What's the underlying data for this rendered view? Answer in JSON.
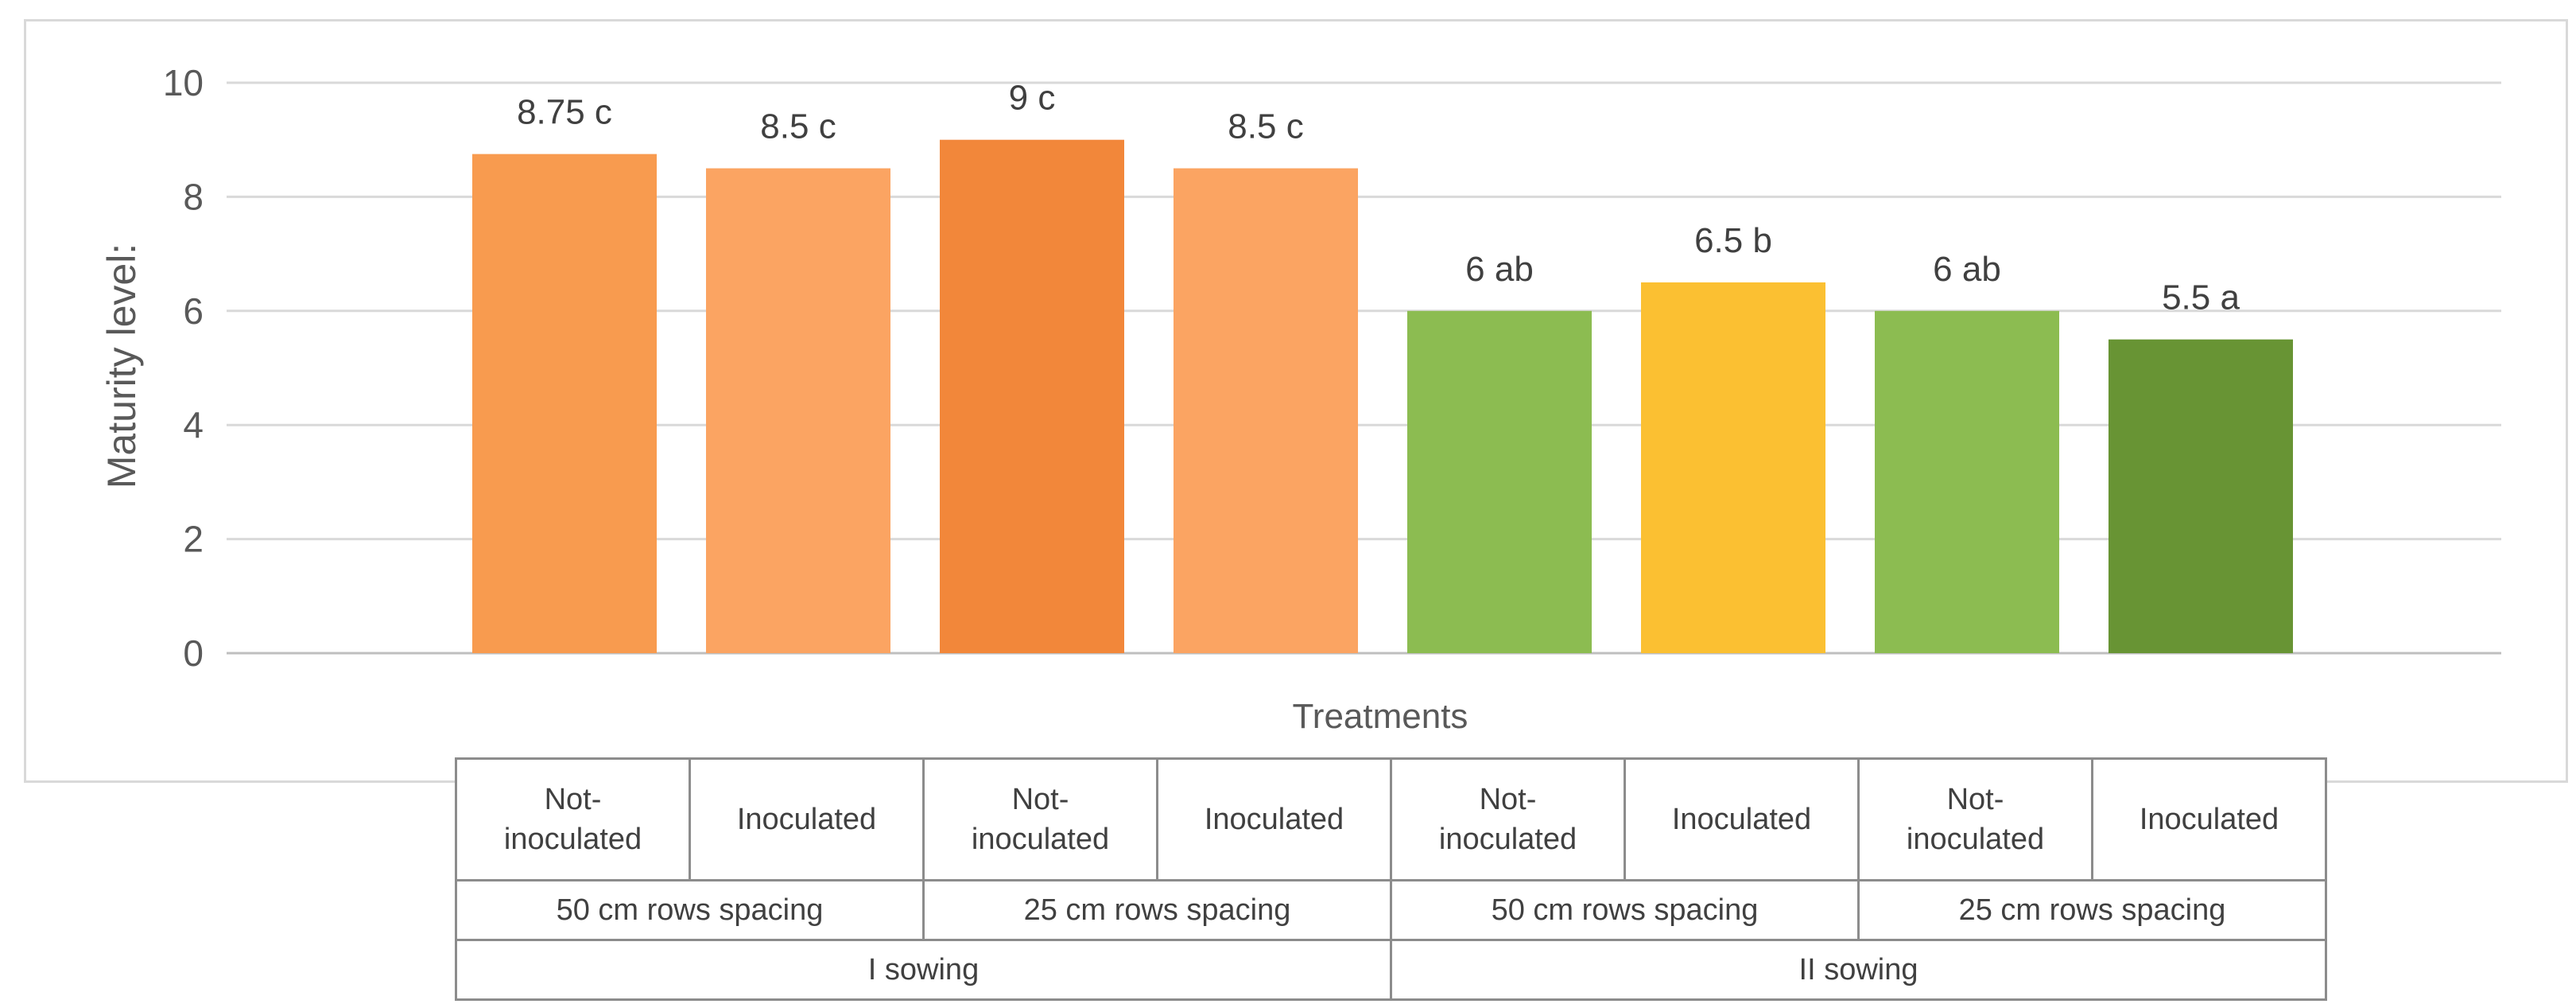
{
  "chart_data": {
    "type": "bar",
    "title": "",
    "xlabel": "Treatments",
    "ylabel": "Maturity level:",
    "ylim": [
      0,
      10
    ],
    "yticks": [
      0,
      2,
      4,
      6,
      8,
      10
    ],
    "grid": true,
    "categories": [
      "Not-inoculated | 50 cm rows spacing | I sowing",
      "Inoculated | 50 cm rows spacing | I sowing",
      "Not-inoculated | 25 cm rows spacing | I sowing",
      "Inoculated | 25 cm rows spacing | I sowing",
      "Not-inoculated | 50 cm rows spacing | II sowing",
      "Inoculated | 50 cm rows spacing | II sowing",
      "Not-inoculated | 25 cm rows spacing | II sowing",
      "Inoculated | 25 cm rows spacing | II sowing"
    ],
    "values": [
      8.75,
      8.5,
      9,
      8.5,
      6,
      6.5,
      6,
      5.5
    ],
    "data_labels": [
      "8.75 c",
      "8.5 c",
      "9 c",
      "8.5 c",
      "6 ab",
      "6.5 b",
      "6 ab",
      "5.5 a"
    ],
    "bar_colors": [
      "#F89B4F",
      "#FBA462",
      "#F2873A",
      "#FBA462",
      "#8CBC51",
      "#FBC032",
      "#8CBC51",
      "#689434"
    ]
  },
  "table": {
    "inoculation_row": [
      "Not-\ninoculated",
      "Inoculated",
      "Not-\ninoculated",
      "Inoculated",
      "Not-\ninoculated",
      "Inoculated",
      "Not-\ninoculated",
      "Inoculated"
    ],
    "spacing_row": [
      "50 cm rows spacing",
      "25 cm rows spacing",
      "50 cm rows spacing",
      "25 cm rows spacing"
    ],
    "sowing_row": [
      "I sowing",
      "II sowing"
    ]
  },
  "colors": {
    "grid": "#d9d9d9",
    "axis": "#bfbfbf",
    "text": "#595959",
    "label_text": "#404040"
  }
}
